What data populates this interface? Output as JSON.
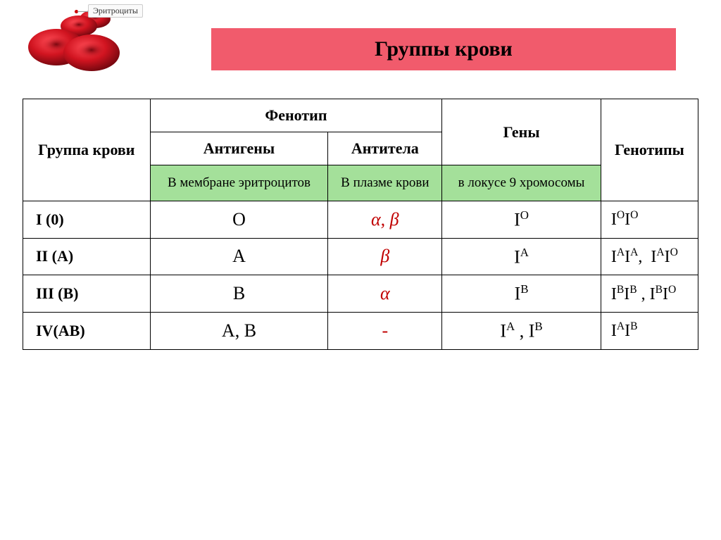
{
  "title": "Группы крови",
  "rbc_label": "Эритроциты",
  "colors": {
    "banner_bg": "#f15b6c",
    "green_bg": "#a4e09a",
    "antibody": "#c00000",
    "rbc_fill": "#d11420",
    "rbc_dark": "#7a0810"
  },
  "headers": {
    "group": "Группа крови",
    "phenotype": "Фенотип",
    "genes": "Гены",
    "genotypes": "Генотипы",
    "antigens": "Антигены",
    "antibodies": "Антитела"
  },
  "subheaders": {
    "antigens_loc": "В мембране эритроцитов",
    "antibodies_loc": "В плазме крови",
    "genes_loc": "в локусе 9 хромосомы"
  },
  "rows": [
    {
      "group": "I (0)",
      "antigen": "O",
      "antibody": "α, β",
      "gene_html": "I<sup>O</sup>",
      "genotype_html": "I<sup>O</sup>I<sup>O</sup>"
    },
    {
      "group": "II (A)",
      "antigen": "A",
      "antibody": "β",
      "gene_html": "I<sup>A</sup>",
      "genotype_html": "I<sup>A</sup>I<sup>A</sup>,&nbsp;&nbsp;I<sup>A</sup>I<sup>O</sup>"
    },
    {
      "group": "III (B)",
      "antigen": "B",
      "antibody": "α",
      "gene_html": "I<sup>B</sup>",
      "genotype_html": "I<sup>B</sup>I<sup>B</sup> , I<sup>B</sup>I<sup>O</sup>"
    },
    {
      "group": "IV(AB)",
      "antigen": "A, B",
      "antibody": "-",
      "gene_html": "I<sup>A</sup> , I<sup>B</sup>",
      "genotype_html": "I<sup>A</sup>I<sup>B</sup>"
    }
  ]
}
